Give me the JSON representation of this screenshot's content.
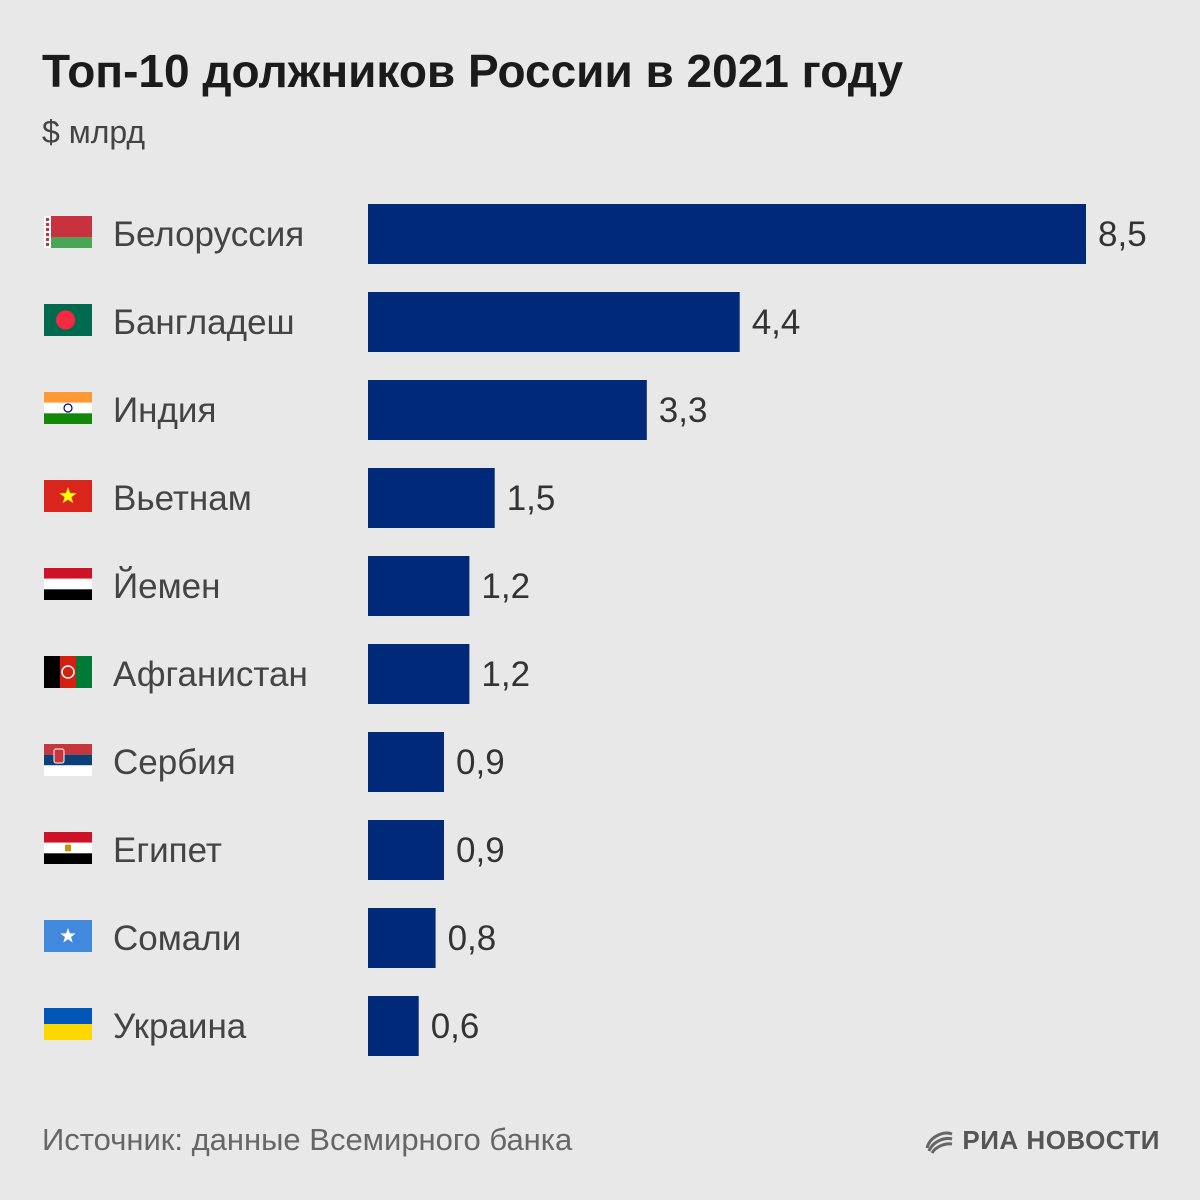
{
  "title": "Топ-10 должников России в 2021 году",
  "subtitle": "$ млрд",
  "source": "Источник: данные Всемирного банка",
  "logo": "РИА НОВОСТИ",
  "colors": {
    "bar": "#00297a",
    "background": "#e8e8e8",
    "label": "#444444"
  },
  "chart_data": {
    "type": "bar",
    "orientation": "horizontal",
    "title": "Топ-10 должников России в 2021 году",
    "ylabel": "$ млрд",
    "categories": [
      "Белоруссия",
      "Бангладеш",
      "Индия",
      "Вьетнам",
      "Йемен",
      "Афганистан",
      "Сербия",
      "Египет",
      "Сомали",
      "Украина"
    ],
    "values": [
      8.5,
      4.4,
      3.3,
      1.5,
      1.2,
      1.2,
      0.9,
      0.9,
      0.8,
      0.6
    ],
    "value_labels": [
      "8,5",
      "4,4",
      "3,3",
      "1,5",
      "1,2",
      "1,2",
      "0,9",
      "0,9",
      "0,8",
      "0,6"
    ],
    "flag_icons": [
      "belarus-flag-icon",
      "bangladesh-flag-icon",
      "india-flag-icon",
      "vietnam-flag-icon",
      "yemen-flag-icon",
      "afghanistan-flag-icon",
      "serbia-flag-icon",
      "egypt-flag-icon",
      "somalia-flag-icon",
      "ukraine-flag-icon"
    ],
    "xlim": [
      0,
      8.5
    ],
    "grid": false,
    "legend": "none"
  }
}
